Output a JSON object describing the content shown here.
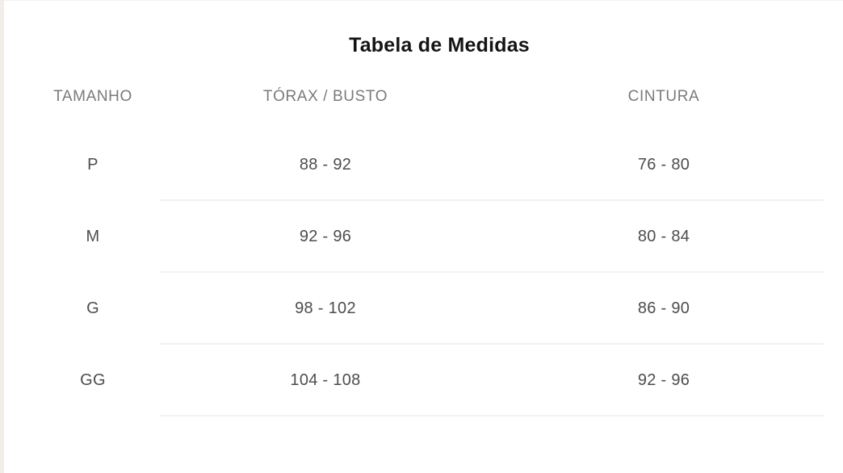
{
  "size_chart": {
    "title": "Tabela de Medidas",
    "headers": [
      "TAMANHO",
      "TÓRAX / BUSTO",
      "CINTURA"
    ],
    "rows": [
      {
        "size": "P",
        "torax_busto": "88 - 92",
        "cintura": "76 - 80"
      },
      {
        "size": "M",
        "torax_busto": "92 - 96",
        "cintura": "80 - 84"
      },
      {
        "size": "G",
        "torax_busto": "98 - 102",
        "cintura": "86 - 90"
      },
      {
        "size": "GG",
        "torax_busto": "104 - 108",
        "cintura": "92 - 96"
      }
    ],
    "colors": {
      "background": "#ffffff",
      "title_text": "#141414",
      "header_text": "#7a7a7a",
      "cell_text": "#4d4d4d",
      "divider": "#f2f2f2",
      "left_edge_strip": "#f1eeea"
    }
  }
}
